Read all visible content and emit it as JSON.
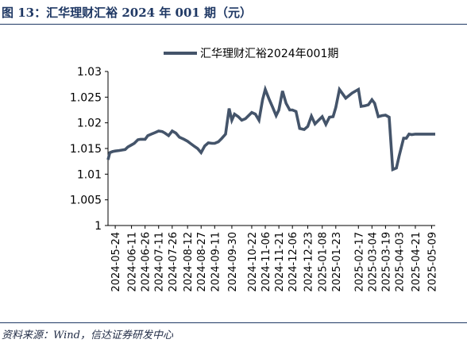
{
  "figure": {
    "title": "图 13：汇华理财汇裕 2024 年 001 期（元）",
    "source": "资料来源：Wind，信达证券研发中心"
  },
  "colors": {
    "series": "#44546a",
    "axis": "#000000",
    "header": "#1f3864"
  },
  "chart_data": {
    "type": "line",
    "title": "",
    "xlabel": "",
    "ylabel": "",
    "ylim": [
      1,
      1.03
    ],
    "grid": false,
    "legend": "top-center",
    "yticks": [
      "1",
      "1.005",
      "1.01",
      "1.015",
      "1.02",
      "1.025",
      "1.03"
    ],
    "xticks": [
      "2024-05-24",
      "2024-06-11",
      "2024-06-26",
      "2024-07-11",
      "2024-07-26",
      "2024-08-12",
      "2024-08-27",
      "2024-09-11",
      "2024-09-30",
      "2024-10-22",
      "2024-11-06",
      "2024-11-21",
      "2024-12-06",
      "2024-12-23",
      "2025-01-08",
      "2025-01-23",
      "2025-02-17",
      "2025-03-04",
      "2025-03-19",
      "2025-04-03",
      "2025-04-21",
      "2025-05-09"
    ],
    "series": [
      {
        "name": "汇华理财汇裕2024年001期",
        "x": [
          "2024-05-16",
          "2024-05-18",
          "2024-05-21",
          "2024-05-24",
          "2024-05-28",
          "2024-06-01",
          "2024-06-04",
          "2024-06-07",
          "2024-06-11",
          "2024-06-14",
          "2024-06-18",
          "2024-06-21",
          "2024-06-26",
          "2024-06-29",
          "2024-07-03",
          "2024-07-07",
          "2024-07-11",
          "2024-07-15",
          "2024-07-18",
          "2024-07-22",
          "2024-07-26",
          "2024-07-30",
          "2024-08-03",
          "2024-08-08",
          "2024-08-12",
          "2024-08-15",
          "2024-08-19",
          "2024-08-23",
          "2024-08-27",
          "2024-08-31",
          "2024-09-04",
          "2024-09-08",
          "2024-09-11",
          "2024-09-15",
          "2024-09-19",
          "2024-09-23",
          "2024-09-27",
          "2024-09-30",
          "2024-10-03",
          "2024-10-07",
          "2024-10-11",
          "2024-10-15",
          "2024-10-22",
          "2024-10-26",
          "2024-10-30",
          "2024-11-03",
          "2024-11-06",
          "2024-11-10",
          "2024-11-14",
          "2024-11-18",
          "2024-11-21",
          "2024-11-25",
          "2024-11-29",
          "2024-12-03",
          "2024-12-06",
          "2024-12-10",
          "2024-12-14",
          "2024-12-19",
          "2024-12-23",
          "2024-12-27",
          "2024-12-31",
          "2025-01-04",
          "2025-01-08",
          "2025-01-12",
          "2025-01-16",
          "2025-01-20",
          "2025-01-23",
          "2025-01-27",
          "2025-02-03",
          "2025-02-10",
          "2025-02-17",
          "2025-02-20",
          "2025-02-24",
          "2025-02-28",
          "2025-03-04",
          "2025-03-07",
          "2025-03-11",
          "2025-03-15",
          "2025-03-19",
          "2025-03-23",
          "2025-03-27",
          "2025-03-31",
          "2025-04-03",
          "2025-04-08",
          "2025-04-11",
          "2025-04-14",
          "2025-04-17",
          "2025-04-21",
          "2025-04-25",
          "2025-04-29",
          "2025-05-03",
          "2025-05-06",
          "2025-05-09",
          "2025-05-13"
        ],
        "y": [
          1.0128,
          1.0142,
          1.0144,
          1.0145,
          1.0146,
          1.0147,
          1.0148,
          1.0153,
          1.0157,
          1.016,
          1.0167,
          1.0168,
          1.0168,
          1.0175,
          1.0178,
          1.0181,
          1.0184,
          1.0183,
          1.018,
          1.0175,
          1.0184,
          1.018,
          1.0172,
          1.0168,
          1.0164,
          1.016,
          1.0155,
          1.015,
          1.0142,
          1.0155,
          1.0161,
          1.016,
          1.016,
          1.0163,
          1.017,
          1.0178,
          1.0228,
          1.0205,
          1.0217,
          1.0212,
          1.0205,
          1.0208,
          1.022,
          1.0217,
          1.0205,
          1.0245,
          1.0265,
          1.0247,
          1.0231,
          1.0214,
          1.0225,
          1.0262,
          1.0238,
          1.0225,
          1.0225,
          1.0222,
          1.0189,
          1.0187,
          1.0193,
          1.0213,
          1.0198,
          1.0205,
          1.0212,
          1.0197,
          1.0211,
          1.0212,
          1.023,
          1.0265,
          1.0248,
          1.0258,
          1.0265,
          1.0232,
          1.0233,
          1.0235,
          1.0245,
          1.0238,
          1.0212,
          1.0214,
          1.0215,
          1.0211,
          1.0109,
          1.0112,
          1.0135,
          1.017,
          1.017,
          1.0178,
          1.0177,
          1.0178,
          1.0178,
          1.0178,
          1.0178,
          1.0178,
          1.0178,
          1.0178
        ]
      }
    ]
  }
}
